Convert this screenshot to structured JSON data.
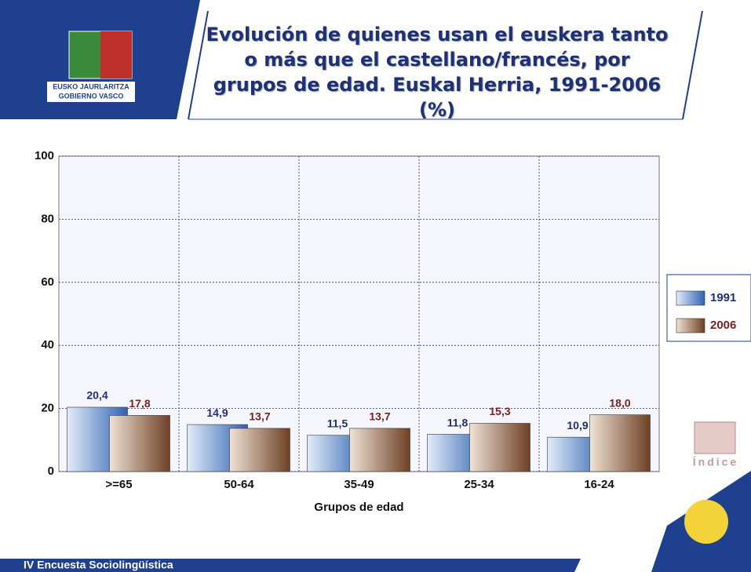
{
  "chart_data": {
    "type": "bar",
    "title": "Evolución de quienes usan el euskera tanto o más que el castellano/francés, por grupos de edad. Euskal Herria, 1991-2006 (%)",
    "x_label": "Grupos de edad",
    "categories": [
      ">=65",
      "50-64",
      "35-49",
      "25-34",
      "16-24"
    ],
    "series": [
      {
        "name": "1991",
        "color": "#3d73c0",
        "values": [
          20.4,
          14.9,
          11.5,
          11.8,
          10.9
        ],
        "value_labels": [
          "20,4",
          "14,9",
          "11,5",
          "11,8",
          "10,9"
        ]
      },
      {
        "name": "2006",
        "color": "#8a5a3c",
        "values": [
          17.8,
          13.7,
          13.7,
          15.3,
          18.0
        ],
        "value_labels": [
          "17,8",
          "13,7",
          "13,7",
          "15,3",
          "18,0"
        ]
      }
    ],
    "ylim": [
      0,
      100
    ],
    "yticks": [
      0,
      20,
      40,
      60,
      80,
      100
    ],
    "grid": true,
    "legend": "right"
  },
  "logo": {
    "line1": "EUSKO JAURLARITZA",
    "line2": "GOBIERNO VASCO"
  },
  "index_label": "Índice",
  "footer": "IV Encuesta Sociolingüística"
}
